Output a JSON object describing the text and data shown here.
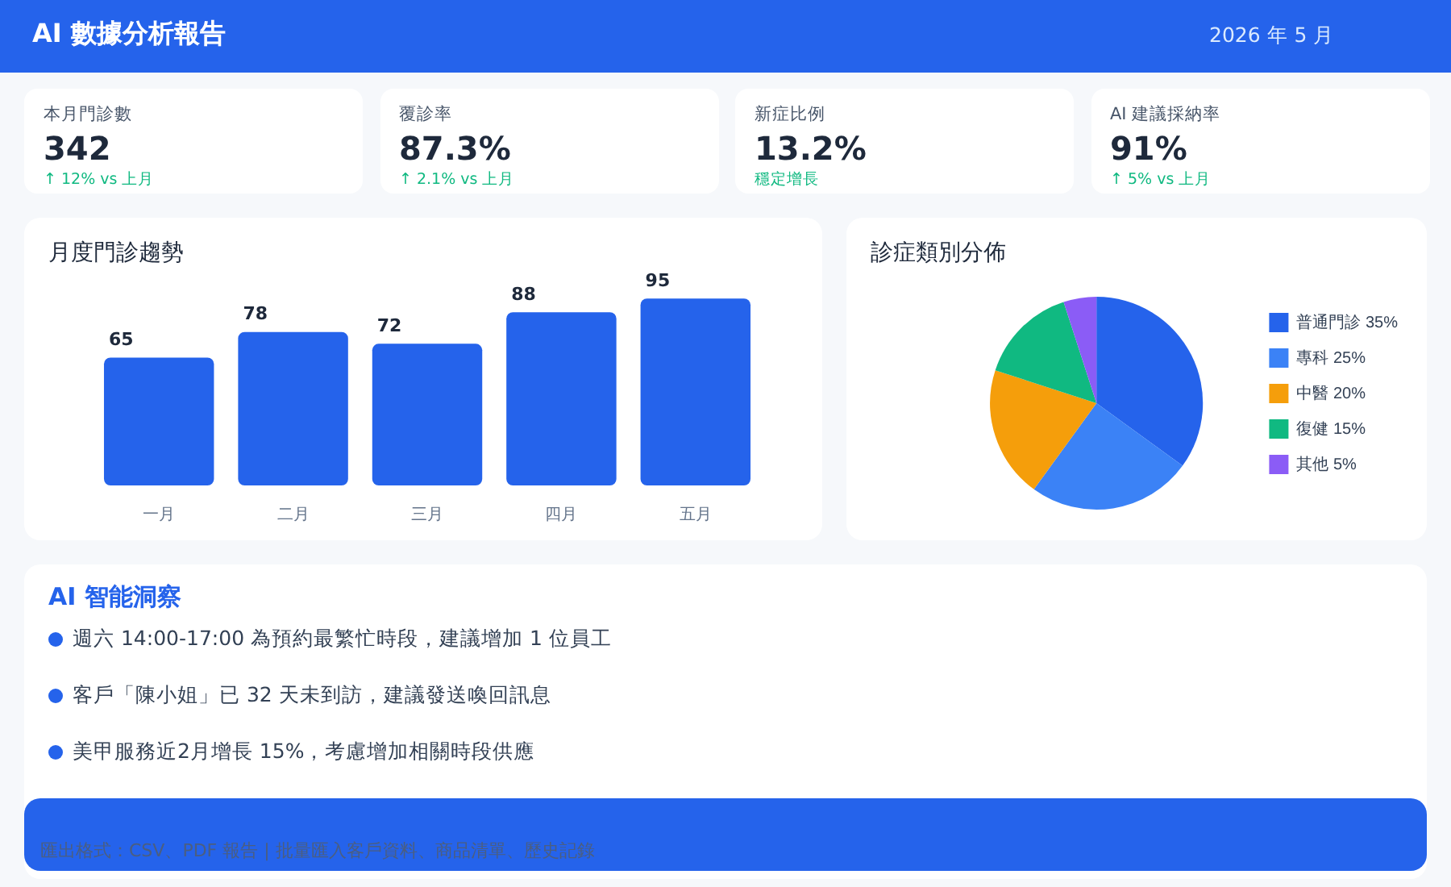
{
  "chart_data": [
    {
      "type": "other",
      "title": "AI 數據分析報告",
      "subtitle": "2026 年 5 月",
      "annotations": [
        "本月門診數",
        "342",
        "↑ 12% vs 上月",
        "覆診率",
        "87.3%",
        "↑ 2.1% vs 上月",
        "新症比例",
        "13.2%",
        "穩定增長",
        "AI 建議採納率",
        "91%",
        "↑ 5% vs 上月"
      ]
    },
    {
      "type": "bar",
      "title": "月度門診趨勢",
      "categories": [
        "一月",
        "二月",
        "三月",
        "四月",
        "五月"
      ],
      "values": [
        65,
        78,
        72,
        88,
        95
      ],
      "color": "#2563eb",
      "data_labels": true,
      "tick_labels": "x"
    },
    {
      "type": "pie",
      "title": "診症類別分佈",
      "categories": [
        "普通門診 35%",
        "專科 25%",
        "中醫 20%",
        "復健 15%",
        "其他 5%"
      ],
      "values": [
        35,
        25,
        20,
        15,
        5
      ],
      "colors": [
        "#2563eb",
        "#3b82f6",
        "#f59e0b",
        "#10b981",
        "#8b5cf6"
      ],
      "legend": "right"
    },
    {
      "type": "other",
      "title": "AI 智能洞察",
      "annotations": [
        "週六 14:00-17:00 為預約最繁忙時段，建議增加 1 位員工",
        "客戶「陳小姐」已 32 天未到訪，建議發送喚回訊息",
        "美甲服務近2月增長 15%，考慮增加相關時段供應"
      ]
    },
    {
      "type": "other",
      "annotations": [
        "匯出格式：CSV、PDF 報告 | 批量匯入客戶資料、商品清單、歷史記錄"
      ]
    }
  ]
}
